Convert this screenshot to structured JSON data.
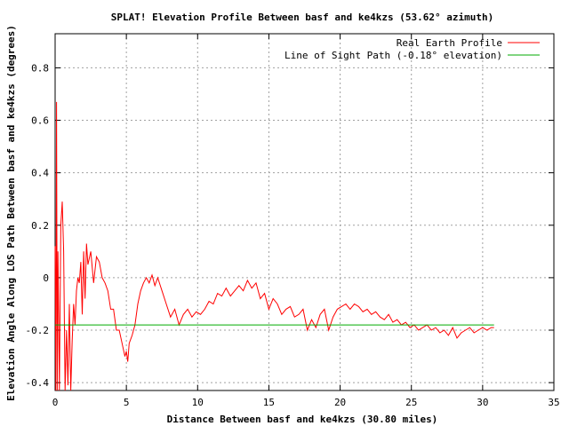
{
  "chart_data": {
    "type": "line",
    "title": "SPLAT! Elevation Profile Between basf and ke4kzs (53.62° azimuth)",
    "xlabel": "Distance Between basf and ke4kzs (30.80 miles)",
    "ylabel": "Elevation Angle Along LOS Path Between basf and ke4kzs (degrees)",
    "xlim": [
      0,
      35
    ],
    "ylim": [
      -0.43,
      0.93
    ],
    "x_ticks": [
      0,
      5,
      10,
      15,
      20,
      25,
      30,
      35
    ],
    "y_ticks": [
      -0.4,
      -0.2,
      0,
      0.2,
      0.4,
      0.6,
      0.8
    ],
    "x_tick_labels": [
      "0",
      "5",
      "10",
      "15",
      "20",
      "25",
      "30",
      "35"
    ],
    "y_tick_labels": [
      "-0.4",
      "-0.2",
      "0",
      "0.2",
      "0.4",
      "0.6",
      "0.8"
    ],
    "grid": true,
    "legend_position": "top-right",
    "series": [
      {
        "name": "Real Earth Profile",
        "color": "#ff0000",
        "x": [
          0,
          0.05,
          0.1,
          0.15,
          0.2,
          0.3,
          0.4,
          0.5,
          0.6,
          0.7,
          0.8,
          0.9,
          1.0,
          1.1,
          1.2,
          1.3,
          1.4,
          1.5,
          1.6,
          1.7,
          1.8,
          1.9,
          2.0,
          2.1,
          2.2,
          2.3,
          2.5,
          2.7,
          2.9,
          3.1,
          3.3,
          3.5,
          3.7,
          3.9,
          4.1,
          4.3,
          4.5,
          4.7,
          4.9,
          5.0,
          5.1,
          5.2,
          5.4,
          5.6,
          5.8,
          6.0,
          6.2,
          6.4,
          6.6,
          6.8,
          7.0,
          7.2,
          7.5,
          7.8,
          8.1,
          8.4,
          8.7,
          9.0,
          9.3,
          9.6,
          9.9,
          10.2,
          10.5,
          10.8,
          11.1,
          11.4,
          11.7,
          12.0,
          12.3,
          12.6,
          12.9,
          13.2,
          13.5,
          13.8,
          14.1,
          14.4,
          14.7,
          15.0,
          15.3,
          15.6,
          15.9,
          16.2,
          16.5,
          16.8,
          17.1,
          17.4,
          17.7,
          18.0,
          18.3,
          18.6,
          18.9,
          19.2,
          19.5,
          19.8,
          20.1,
          20.4,
          20.7,
          21.0,
          21.3,
          21.6,
          21.9,
          22.2,
          22.5,
          22.8,
          23.1,
          23.4,
          23.7,
          24.0,
          24.3,
          24.6,
          24.9,
          25.2,
          25.5,
          25.8,
          26.1,
          26.4,
          26.7,
          27.0,
          27.3,
          27.6,
          27.9,
          28.2,
          28.5,
          28.8,
          29.1,
          29.4,
          29.7,
          30.0,
          30.3,
          30.6,
          30.8
        ],
        "y": [
          0.12,
          -0.43,
          0.67,
          -0.43,
          0.1,
          -0.43,
          0.2,
          0.29,
          0.1,
          -0.43,
          -0.2,
          -0.41,
          -0.1,
          -0.43,
          -0.24,
          -0.1,
          -0.18,
          -0.05,
          0.0,
          -0.02,
          0.06,
          -0.14,
          0.1,
          -0.08,
          0.13,
          0.05,
          0.1,
          -0.02,
          0.08,
          0.06,
          0.0,
          -0.02,
          -0.05,
          -0.12,
          -0.12,
          -0.2,
          -0.2,
          -0.25,
          -0.3,
          -0.28,
          -0.32,
          -0.25,
          -0.22,
          -0.18,
          -0.1,
          -0.05,
          -0.02,
          0.0,
          -0.02,
          0.01,
          -0.03,
          0.0,
          -0.05,
          -0.1,
          -0.15,
          -0.12,
          -0.18,
          -0.14,
          -0.12,
          -0.15,
          -0.13,
          -0.14,
          -0.12,
          -0.09,
          -0.1,
          -0.06,
          -0.07,
          -0.04,
          -0.07,
          -0.05,
          -0.03,
          -0.05,
          -0.01,
          -0.04,
          -0.02,
          -0.08,
          -0.06,
          -0.12,
          -0.08,
          -0.1,
          -0.14,
          -0.12,
          -0.11,
          -0.15,
          -0.14,
          -0.12,
          -0.2,
          -0.16,
          -0.19,
          -0.14,
          -0.12,
          -0.2,
          -0.15,
          -0.12,
          -0.11,
          -0.1,
          -0.12,
          -0.1,
          -0.11,
          -0.13,
          -0.12,
          -0.14,
          -0.13,
          -0.15,
          -0.16,
          -0.14,
          -0.17,
          -0.16,
          -0.18,
          -0.17,
          -0.19,
          -0.18,
          -0.2,
          -0.19,
          -0.18,
          -0.2,
          -0.19,
          -0.21,
          -0.2,
          -0.22,
          -0.19,
          -0.23,
          -0.21,
          -0.2,
          -0.19,
          -0.21,
          -0.2,
          -0.19,
          -0.2,
          -0.19,
          -0.19
        ]
      },
      {
        "name": "Line of Sight Path (-0.18° elevation)",
        "color": "#00aa00",
        "x": [
          0,
          30.8
        ],
        "y": [
          -0.18,
          -0.18
        ]
      }
    ]
  }
}
